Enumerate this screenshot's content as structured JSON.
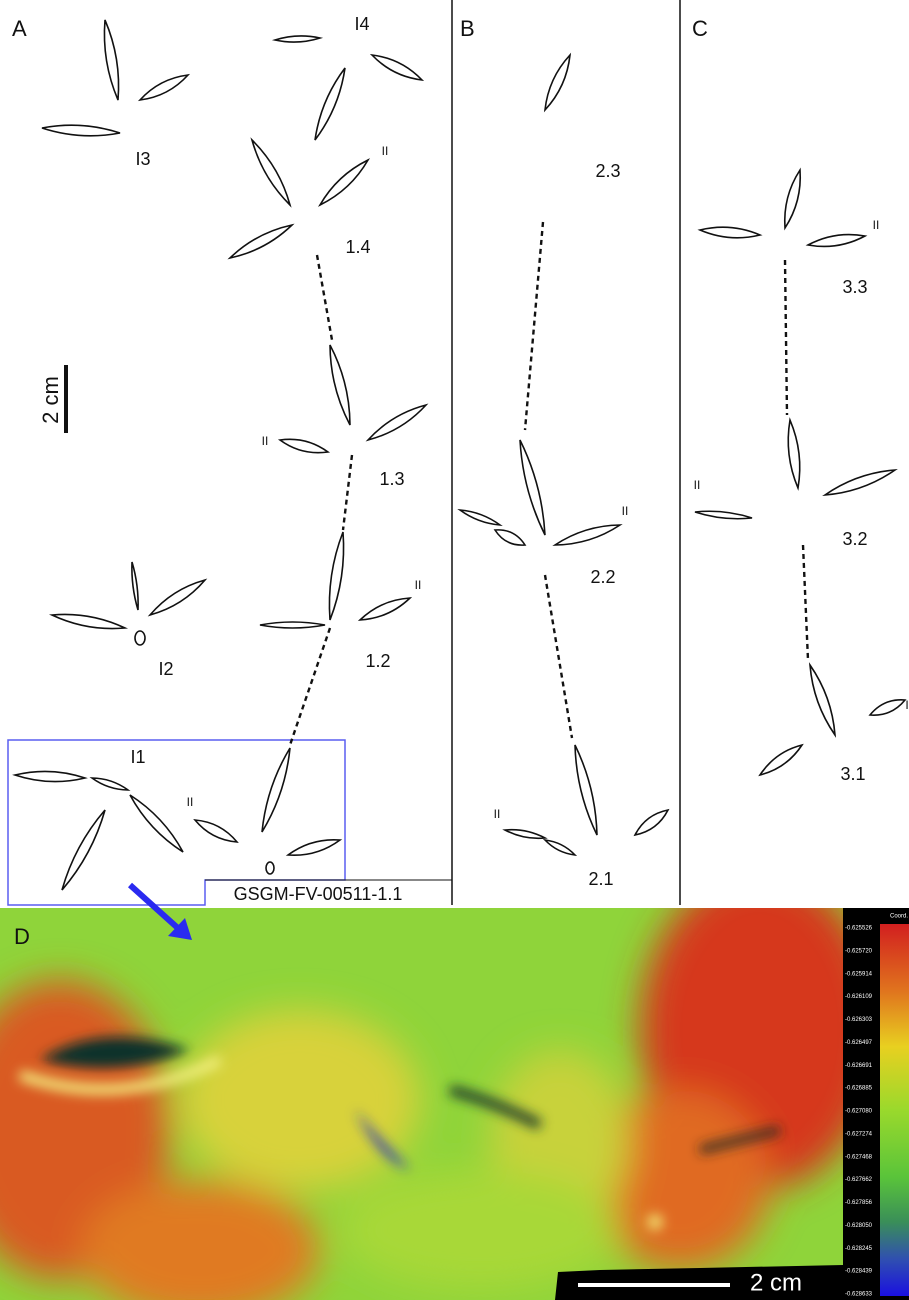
{
  "panel_a": {
    "label": "A",
    "texts": [
      "I3",
      "I4",
      "II",
      "1.4",
      "II",
      "1.3",
      "II",
      "1.2",
      "I2",
      "I1",
      "II",
      "GSGM-FV-00511-1.1"
    ],
    "scale_bar": "2 cm"
  },
  "panel_b": {
    "label": "B",
    "texts": [
      "2.3",
      "II",
      "2.2",
      "II",
      "2.1"
    ]
  },
  "panel_c": {
    "label": "C",
    "texts": [
      "II",
      "3.3",
      "II",
      "3.2",
      "I",
      "3.1"
    ]
  },
  "panel_d": {
    "label": "D",
    "scale_bar": "2 cm",
    "legend_title": "Coord.",
    "legend_values": [
      "-0.625526",
      "-0.625720",
      "-0.625914",
      "-0.626109",
      "-0.626303",
      "-0.626497",
      "-0.626691",
      "-0.626885",
      "-0.627080",
      "-0.627274",
      "-0.627468",
      "-0.627662",
      "-0.627856",
      "-0.628050",
      "-0.628245",
      "-0.628439",
      "-0.628633"
    ]
  }
}
